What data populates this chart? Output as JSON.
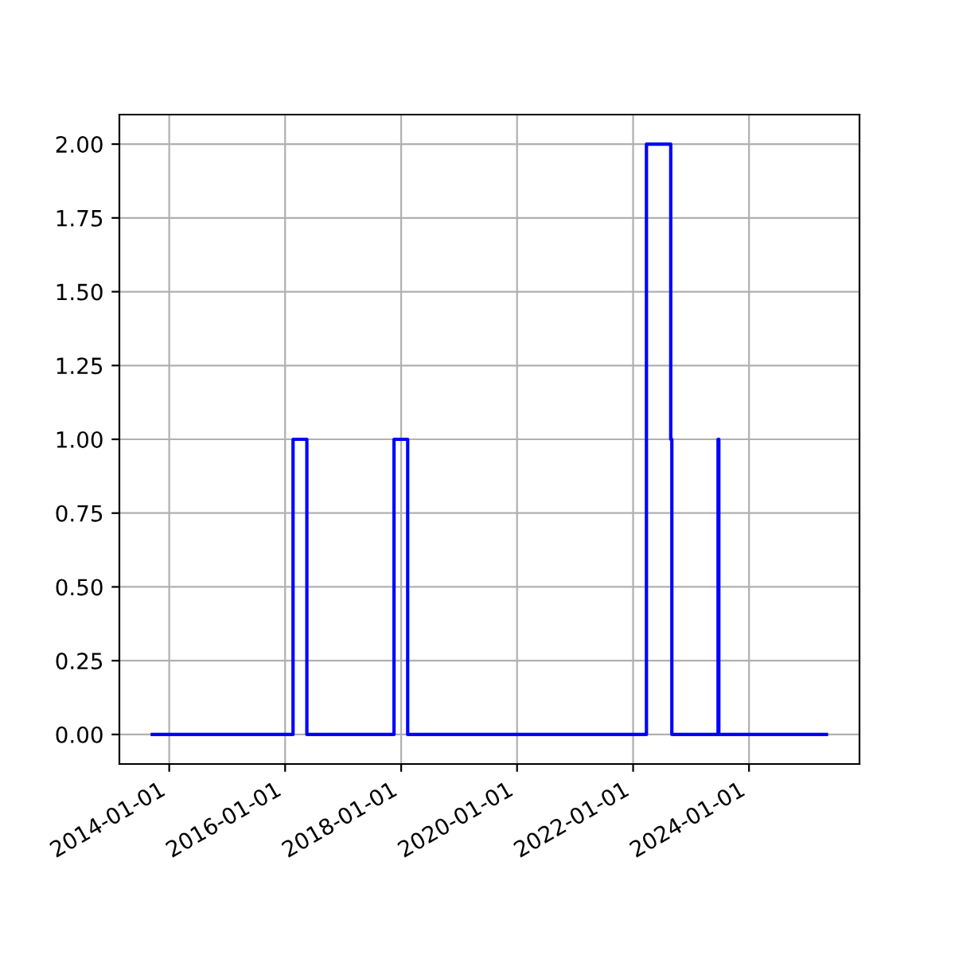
{
  "chart_data": {
    "type": "step",
    "x": [
      "2013-09-16",
      "2016-02-20",
      "2016-05-17",
      "2017-11-17",
      "2018-02-11",
      "2022-03-26",
      "2022-08-26",
      "2022-09-02",
      "2023-06-20",
      "2023-06-25",
      "2025-05-03"
    ],
    "series": [
      {
        "color": "#0000ff",
        "values": [
          0,
          1,
          0,
          1,
          0,
          2,
          1,
          0,
          1,
          0,
          0
        ]
      }
    ],
    "xlim": [
      "2013-02-21",
      "2025-11-27"
    ],
    "xticks": [
      {
        "value": "2014-01-01",
        "label": "2014-01-01"
      },
      {
        "value": "2016-01-01",
        "label": "2016-01-01"
      },
      {
        "value": "2018-01-01",
        "label": "2018-01-01"
      },
      {
        "value": "2020-01-01",
        "label": "2020-01-01"
      },
      {
        "value": "2022-01-01",
        "label": "2022-01-01"
      },
      {
        "value": "2024-01-01",
        "label": "2024-01-01"
      }
    ],
    "ylim": [
      -0.1,
      2.1
    ],
    "yticks": [
      {
        "value": 0,
        "label": "0.00"
      },
      {
        "value": 0.25,
        "label": "0.25"
      },
      {
        "value": 0.5,
        "label": "0.50"
      },
      {
        "value": 0.75,
        "label": "0.75"
      },
      {
        "value": 1,
        "label": "1.00"
      },
      {
        "value": 1.25,
        "label": "1.25"
      },
      {
        "value": 1.5,
        "label": "1.50"
      },
      {
        "value": 1.75,
        "label": "1.75"
      },
      {
        "value": 2,
        "label": "2.00"
      }
    ],
    "grid": true
  }
}
